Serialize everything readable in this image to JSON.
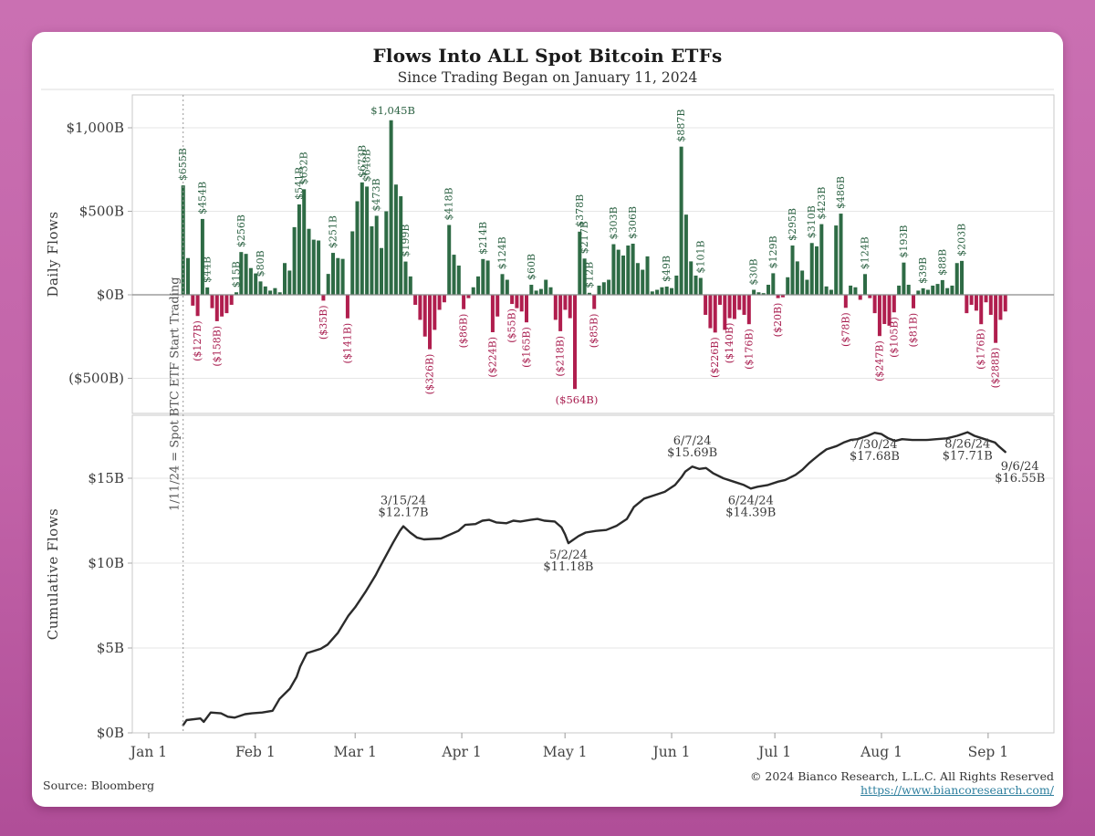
{
  "header": {
    "title": "Flows Into ALL Spot Bitcoin ETFs",
    "subtitle": "Since Trading Began on January 11, 2024"
  },
  "footer": {
    "source": "Source: Bloomberg",
    "copyright": "© 2024 Bianco Research, L.L.C. All Rights Reserved",
    "link": "https://www.biancoresearch.com/"
  },
  "colors": {
    "positive_bar": "#2e6b45",
    "negative_bar": "#b01e4e",
    "line": "#2b2b2b",
    "background": "#c468ab",
    "link": "#2e7f9e"
  },
  "x_axis": {
    "months": [
      [
        "Jan 1",
        0
      ],
      [
        "Feb 1",
        31
      ],
      [
        "Mar 1",
        60
      ],
      [
        "Apr 1",
        91
      ],
      [
        "May 1",
        121
      ],
      [
        "Jun 1",
        152
      ],
      [
        "Jul 1",
        182
      ],
      [
        "Aug 1",
        213
      ],
      [
        "Sep 1",
        244
      ]
    ]
  },
  "chart_data": [
    {
      "type": "bar",
      "title": "Daily Flows",
      "ylabel": "Daily Flows",
      "units": "B",
      "ylim": [
        -620,
        1100
      ],
      "yticks": [
        [
          1000,
          "$1,000B"
        ],
        [
          500,
          "$500B"
        ],
        [
          0,
          "$0B"
        ],
        [
          -500,
          "($500B)"
        ]
      ],
      "start_line": {
        "day": 10,
        "label": "1/11/24 = Spot BTC ETF Start Trading"
      },
      "bars": [
        [
          655,
          "$655B"
        ],
        [
          220
        ],
        [
          -65
        ],
        [
          -127,
          "($127B)"
        ],
        [
          454,
          "$454B"
        ],
        [
          44,
          "$44B"
        ],
        [
          -80
        ],
        [
          -158,
          "($158B)"
        ],
        [
          -130
        ],
        [
          -110
        ],
        [
          -60
        ],
        [
          15,
          "$15B"
        ],
        [
          256,
          "$256B"
        ],
        [
          245
        ],
        [
          160
        ],
        [
          128
        ],
        [
          80,
          "$80B"
        ],
        [
          50
        ],
        [
          25
        ],
        [
          40
        ],
        [
          15
        ],
        [
          190
        ],
        [
          145
        ],
        [
          405
        ],
        [
          541,
          "$541B"
        ],
        [
          632,
          "$632B"
        ],
        [
          395
        ],
        [
          330
        ],
        [
          325
        ],
        [
          -35,
          "($35B)"
        ],
        [
          125
        ],
        [
          251,
          "$251B"
        ],
        [
          220
        ],
        [
          215
        ],
        [
          -141,
          "($141B)"
        ],
        [
          380
        ],
        [
          560
        ],
        [
          673,
          "$673B"
        ],
        [
          648,
          "$648B"
        ],
        [
          410
        ],
        [
          473,
          "$473B"
        ],
        [
          280
        ],
        [
          500
        ],
        [
          1045,
          "$1,045B",
          "h"
        ],
        [
          660
        ],
        [
          590
        ],
        [
          199,
          "$199B"
        ],
        [
          110
        ],
        [
          -60
        ],
        [
          -150
        ],
        [
          -250
        ],
        [
          -326,
          "($326B)"
        ],
        [
          -210
        ],
        [
          -90
        ],
        [
          -45
        ],
        [
          418,
          "$418B"
        ],
        [
          240
        ],
        [
          175
        ],
        [
          -86,
          "($86B)"
        ],
        [
          -20
        ],
        [
          45
        ],
        [
          110
        ],
        [
          214,
          "$214B"
        ],
        [
          205
        ],
        [
          -224,
          "($224B)"
        ],
        [
          -130
        ],
        [
          124,
          "$124B"
        ],
        [
          90
        ],
        [
          -55,
          "($55B)"
        ],
        [
          -80
        ],
        [
          -100
        ],
        [
          -165,
          "($165B)"
        ],
        [
          60,
          "$60B"
        ],
        [
          25
        ],
        [
          35
        ],
        [
          90
        ],
        [
          45
        ],
        [
          -150
        ],
        [
          -218,
          "($218B)"
        ],
        [
          -90
        ],
        [
          -140
        ],
        [
          -564,
          "($564B)",
          "h"
        ],
        [
          378,
          "$378B"
        ],
        [
          217,
          "$217B"
        ],
        [
          12,
          "$12B"
        ],
        [
          -85,
          "($85B)"
        ],
        [
          55
        ],
        [
          75
        ],
        [
          90
        ],
        [
          303,
          "$303B"
        ],
        [
          270
        ],
        [
          235
        ],
        [
          295
        ],
        [
          306,
          "$306B"
        ],
        [
          190
        ],
        [
          150
        ],
        [
          230
        ],
        [
          20
        ],
        [
          30
        ],
        [
          45
        ],
        [
          49,
          "$49B"
        ],
        [
          40
        ],
        [
          115
        ],
        [
          887,
          "$887B"
        ],
        [
          480
        ],
        [
          200
        ],
        [
          115
        ],
        [
          101,
          "$101B"
        ],
        [
          -120
        ],
        [
          -200
        ],
        [
          -226,
          "($226B)"
        ],
        [
          -60
        ],
        [
          -210
        ],
        [
          -140,
          "($140B)"
        ],
        [
          -145
        ],
        [
          -90
        ],
        [
          -120
        ],
        [
          -176,
          "($176B)"
        ],
        [
          30,
          "$30B"
        ],
        [
          15
        ],
        [
          10
        ],
        [
          60
        ],
        [
          129,
          "$129B"
        ],
        [
          -20,
          "($20B)"
        ],
        [
          -15
        ],
        [
          105
        ],
        [
          295,
          "$295B"
        ],
        [
          200
        ],
        [
          145
        ],
        [
          90
        ],
        [
          310,
          "$310B"
        ],
        [
          290
        ],
        [
          423,
          "$423B"
        ],
        [
          50
        ],
        [
          30
        ],
        [
          415
        ],
        [
          486,
          "$486B"
        ],
        [
          -78,
          "($78B)"
        ],
        [
          55
        ],
        [
          45
        ],
        [
          -30
        ],
        [
          124,
          "$124B"
        ],
        [
          -20
        ],
        [
          -110
        ],
        [
          -247,
          "($247B)"
        ],
        [
          -175
        ],
        [
          -185
        ],
        [
          -105,
          "($105B)"
        ],
        [
          55
        ],
        [
          193,
          "$193B"
        ],
        [
          60
        ],
        [
          -81,
          "($81B)"
        ],
        [
          25
        ],
        [
          39,
          "$39B"
        ],
        [
          30
        ],
        [
          55
        ],
        [
          65
        ],
        [
          88,
          "$88B"
        ],
        [
          40
        ],
        [
          55
        ],
        [
          190
        ],
        [
          203,
          "$203B"
        ],
        [
          -110
        ],
        [
          -60
        ],
        [
          -95
        ],
        [
          -176,
          "($176B)"
        ],
        [
          -45
        ],
        [
          -120
        ],
        [
          -288,
          "($288B)"
        ],
        [
          -150
        ],
        [
          -100
        ]
      ]
    },
    {
      "type": "line",
      "title": "Cumulative Flows",
      "ylabel": "Cumulative Flows",
      "units": "B",
      "ylim": [
        0,
        18.7
      ],
      "yticks": [
        [
          15,
          "$15B"
        ],
        [
          10,
          "$10B"
        ],
        [
          5,
          "$5B"
        ],
        [
          0,
          "$0B"
        ]
      ],
      "points": [
        [
          10,
          0.45
        ],
        [
          11,
          0.75
        ],
        [
          15,
          0.85
        ],
        [
          16,
          0.65
        ],
        [
          18,
          1.2
        ],
        [
          21,
          1.15
        ],
        [
          23,
          0.95
        ],
        [
          25,
          0.9
        ],
        [
          28,
          1.1
        ],
        [
          30,
          1.15
        ],
        [
          33,
          1.2
        ],
        [
          36,
          1.3
        ],
        [
          38,
          2.0
        ],
        [
          41,
          2.6
        ],
        [
          43,
          3.3
        ],
        [
          44,
          3.9
        ],
        [
          45,
          4.3
        ],
        [
          46,
          4.7
        ],
        [
          50,
          4.95
        ],
        [
          52,
          5.2
        ],
        [
          55,
          5.9
        ],
        [
          58,
          6.9
        ],
        [
          60,
          7.4
        ],
        [
          63,
          8.3
        ],
        [
          66,
          9.3
        ],
        [
          67,
          9.7
        ],
        [
          71,
          11.2
        ],
        [
          73,
          11.9
        ],
        [
          74,
          12.17
        ],
        [
          76,
          11.8
        ],
        [
          78,
          11.5
        ],
        [
          80,
          11.4
        ],
        [
          85,
          11.45
        ],
        [
          90,
          11.9
        ],
        [
          92,
          12.25
        ],
        [
          95,
          12.3
        ],
        [
          97,
          12.5
        ],
        [
          99,
          12.55
        ],
        [
          101,
          12.4
        ],
        [
          104,
          12.35
        ],
        [
          106,
          12.5
        ],
        [
          108,
          12.45
        ],
        [
          111,
          12.55
        ],
        [
          113,
          12.6
        ],
        [
          115,
          12.5
        ],
        [
          118,
          12.45
        ],
        [
          120,
          12.1
        ],
        [
          121,
          11.7
        ],
        [
          122,
          11.18
        ],
        [
          125,
          11.6
        ],
        [
          127,
          11.8
        ],
        [
          130,
          11.9
        ],
        [
          133,
          11.95
        ],
        [
          136,
          12.2
        ],
        [
          139,
          12.6
        ],
        [
          141,
          13.3
        ],
        [
          144,
          13.8
        ],
        [
          147,
          14.0
        ],
        [
          150,
          14.2
        ],
        [
          153,
          14.6
        ],
        [
          155,
          15.1
        ],
        [
          156,
          15.4
        ],
        [
          158,
          15.69
        ],
        [
          160,
          15.55
        ],
        [
          162,
          15.6
        ],
        [
          164,
          15.3
        ],
        [
          167,
          15.0
        ],
        [
          170,
          14.8
        ],
        [
          173,
          14.6
        ],
        [
          175,
          14.39
        ],
        [
          177,
          14.5
        ],
        [
          180,
          14.6
        ],
        [
          183,
          14.8
        ],
        [
          185,
          14.9
        ],
        [
          188,
          15.2
        ],
        [
          190,
          15.5
        ],
        [
          192,
          15.9
        ],
        [
          195,
          16.4
        ],
        [
          197,
          16.7
        ],
        [
          200,
          16.9
        ],
        [
          202,
          17.1
        ],
        [
          204,
          17.25
        ],
        [
          206,
          17.3
        ],
        [
          209,
          17.5
        ],
        [
          211,
          17.68
        ],
        [
          213,
          17.6
        ],
        [
          215,
          17.35
        ],
        [
          217,
          17.2
        ],
        [
          219,
          17.3
        ],
        [
          222,
          17.25
        ],
        [
          226,
          17.25
        ],
        [
          229,
          17.3
        ],
        [
          232,
          17.35
        ],
        [
          235,
          17.5
        ],
        [
          238,
          17.71
        ],
        [
          240,
          17.5
        ],
        [
          243,
          17.3
        ],
        [
          246,
          17.1
        ],
        [
          247,
          16.9
        ],
        [
          249,
          16.55
        ]
      ],
      "annotations": [
        {
          "day": 74,
          "v": 12.17,
          "date": "3/15/24",
          "value": "$12.17B",
          "pos": "above"
        },
        {
          "day": 122,
          "v": 11.18,
          "date": "5/2/24",
          "value": "$11.18B",
          "pos": "below"
        },
        {
          "day": 158,
          "v": 15.69,
          "date": "6/7/24",
          "value": "$15.69B",
          "pos": "above"
        },
        {
          "day": 175,
          "v": 14.39,
          "date": "6/24/24",
          "value": "$14.39B",
          "pos": "below"
        },
        {
          "day": 211,
          "v": 17.68,
          "date": "7/30/24",
          "value": "$17.68B",
          "pos": "below"
        },
        {
          "day": 238,
          "v": 17.71,
          "date": "8/26/24",
          "value": "$17.71B",
          "pos": "below"
        },
        {
          "day": 249,
          "v": 16.55,
          "date": "9/6/24",
          "value": "$16.55B",
          "pos": "below-right"
        }
      ]
    }
  ]
}
